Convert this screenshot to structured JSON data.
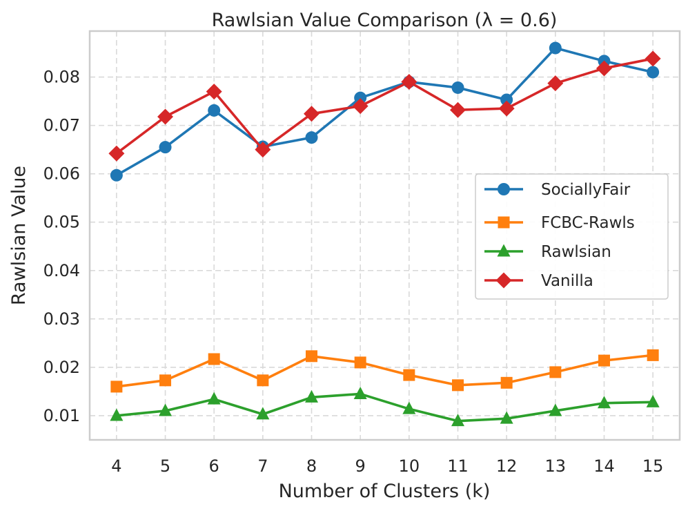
{
  "chart_data": {
    "type": "line",
    "title": "Rawlsian Value Comparison (λ = 0.6)",
    "xlabel": "Number of Clusters (k)",
    "ylabel": "Rawlsian Value",
    "x": [
      4,
      5,
      6,
      7,
      8,
      9,
      10,
      11,
      12,
      13,
      14,
      15
    ],
    "xlim": [
      3.45,
      15.55
    ],
    "ylim": [
      0.005,
      0.0895
    ],
    "yticks": [
      0.01,
      0.02,
      0.03,
      0.04,
      0.05,
      0.06,
      0.07,
      0.08
    ],
    "ytick_labels": [
      "0.01",
      "0.02",
      "0.03",
      "0.04",
      "0.05",
      "0.06",
      "0.07",
      "0.08"
    ],
    "xtick_labels": [
      "4",
      "5",
      "6",
      "7",
      "8",
      "9",
      "10",
      "11",
      "12",
      "13",
      "14",
      "15"
    ],
    "grid": true,
    "legend_position": "center-right",
    "series": [
      {
        "name": "SociallyFair",
        "color": "#1f77b4",
        "marker": "circle",
        "values": [
          0.0597,
          0.0655,
          0.0731,
          0.0656,
          0.0675,
          0.0757,
          0.079,
          0.0778,
          0.0753,
          0.086,
          0.0833,
          0.081
        ]
      },
      {
        "name": "FCBC-Rawls",
        "color": "#ff7f0e",
        "marker": "square",
        "values": [
          0.016,
          0.0173,
          0.0217,
          0.0173,
          0.0223,
          0.021,
          0.0184,
          0.0163,
          0.0168,
          0.019,
          0.0214,
          0.0225
        ]
      },
      {
        "name": "Rawlsian",
        "color": "#2ca02c",
        "marker": "triangle",
        "values": [
          0.01,
          0.011,
          0.0134,
          0.0103,
          0.0138,
          0.0145,
          0.0114,
          0.0089,
          0.0094,
          0.011,
          0.0126,
          0.0128
        ]
      },
      {
        "name": "Vanilla",
        "color": "#d62728",
        "marker": "diamond",
        "values": [
          0.0642,
          0.0718,
          0.077,
          0.065,
          0.0724,
          0.074,
          0.079,
          0.0732,
          0.0735,
          0.0787,
          0.0818,
          0.0838
        ]
      }
    ]
  }
}
